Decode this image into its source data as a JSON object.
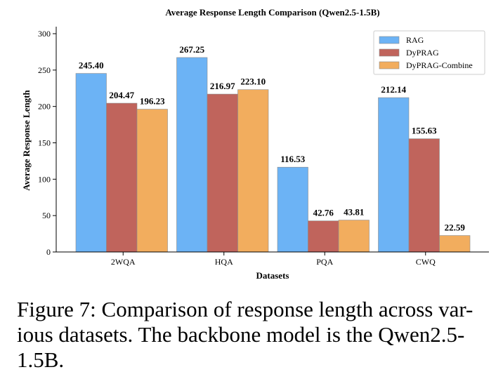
{
  "chart_data": {
    "type": "bar",
    "title": "Average Response Length Comparison (Qwen2.5-1.5B)",
    "xlabel": "Datasets",
    "ylabel": "Average Response Length",
    "ylim": [
      0,
      300
    ],
    "yticks": [
      0,
      50,
      100,
      150,
      200,
      250,
      300
    ],
    "categories": [
      "2WQA",
      "HQA",
      "PQA",
      "CWQ"
    ],
    "series": [
      {
        "name": "RAG",
        "color": "#6cb3f5",
        "values": [
          245.4,
          267.25,
          116.53,
          212.14
        ],
        "labels": [
          "245.40",
          "267.25",
          "116.53",
          "212.14"
        ]
      },
      {
        "name": "DyPRAG",
        "color": "#c0645c",
        "values": [
          204.47,
          216.97,
          42.76,
          155.63
        ],
        "labels": [
          "204.47",
          "216.97",
          "42.76",
          "155.63"
        ]
      },
      {
        "name": "DyPRAG-Combine",
        "color": "#f2ad5e",
        "values": [
          196.23,
          223.1,
          43.81,
          22.59
        ],
        "labels": [
          "196.23",
          "223.10",
          "43.81",
          "22.59"
        ]
      }
    ],
    "legend_position": "top-right",
    "grid": false
  },
  "caption": {
    "lines": [
      "Figure 7: Comparison of response length across var-",
      "ious datasets. The backbone model is the Qwen2.5-",
      "1.5B."
    ]
  }
}
